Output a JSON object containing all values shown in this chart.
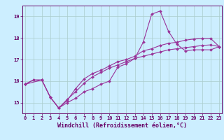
{
  "xlabel": "Windchill (Refroidissement éolien,°C)",
  "bg_color": "#cceeff",
  "line_color": "#993399",
  "grid_color": "#aacccc",
  "axis_color": "#660066",
  "tick_color": "#660066",
  "x_ticks": [
    0,
    1,
    2,
    3,
    4,
    5,
    6,
    7,
    8,
    9,
    10,
    11,
    12,
    13,
    14,
    15,
    16,
    17,
    18,
    19,
    20,
    21,
    22,
    23
  ],
  "ylim": [
    14.5,
    19.5
  ],
  "xlim": [
    -0.3,
    23.3
  ],
  "yticks": [
    15,
    16,
    17,
    18,
    19
  ],
  "ytick_labels": [
    "15",
    "16",
    "17",
    "18",
    "19"
  ],
  "line1_x": [
    0,
    1,
    2,
    3,
    4,
    5,
    6,
    7,
    8,
    9,
    10,
    11,
    12,
    13,
    14,
    15,
    16,
    17,
    18,
    19,
    20,
    21,
    22,
    23
  ],
  "line1_y": [
    15.85,
    16.05,
    16.05,
    15.25,
    14.75,
    15.0,
    15.2,
    15.5,
    15.65,
    15.85,
    16.0,
    16.65,
    16.8,
    17.05,
    17.8,
    19.1,
    19.25,
    18.3,
    17.7,
    17.4,
    17.45,
    17.45,
    17.45,
    17.6
  ],
  "line2_x": [
    0,
    1,
    2,
    3,
    4,
    5,
    6,
    7,
    8,
    9,
    10,
    11,
    12,
    13,
    14,
    15,
    16,
    17,
    18,
    19,
    20,
    21,
    22,
    23
  ],
  "line2_y": [
    15.85,
    16.05,
    16.05,
    15.25,
    14.75,
    15.1,
    15.65,
    16.1,
    16.35,
    16.5,
    16.7,
    16.9,
    17.0,
    17.15,
    17.4,
    17.5,
    17.65,
    17.75,
    17.8,
    17.9,
    17.95,
    17.97,
    17.97,
    17.6
  ],
  "line3_x": [
    0,
    2,
    3,
    4,
    5,
    6,
    7,
    8,
    9,
    10,
    11,
    12,
    13,
    14,
    15,
    16,
    17,
    18,
    19,
    20,
    21,
    22,
    23
  ],
  "line3_y": [
    15.85,
    16.05,
    15.25,
    14.75,
    15.15,
    15.5,
    15.9,
    16.2,
    16.4,
    16.6,
    16.75,
    16.9,
    17.05,
    17.15,
    17.25,
    17.35,
    17.45,
    17.5,
    17.55,
    17.6,
    17.65,
    17.68,
    17.6
  ],
  "marker": "D",
  "markersize": 2.0,
  "linewidth": 0.8,
  "tick_fontsize": 5.0,
  "xlabel_fontsize": 6.0
}
